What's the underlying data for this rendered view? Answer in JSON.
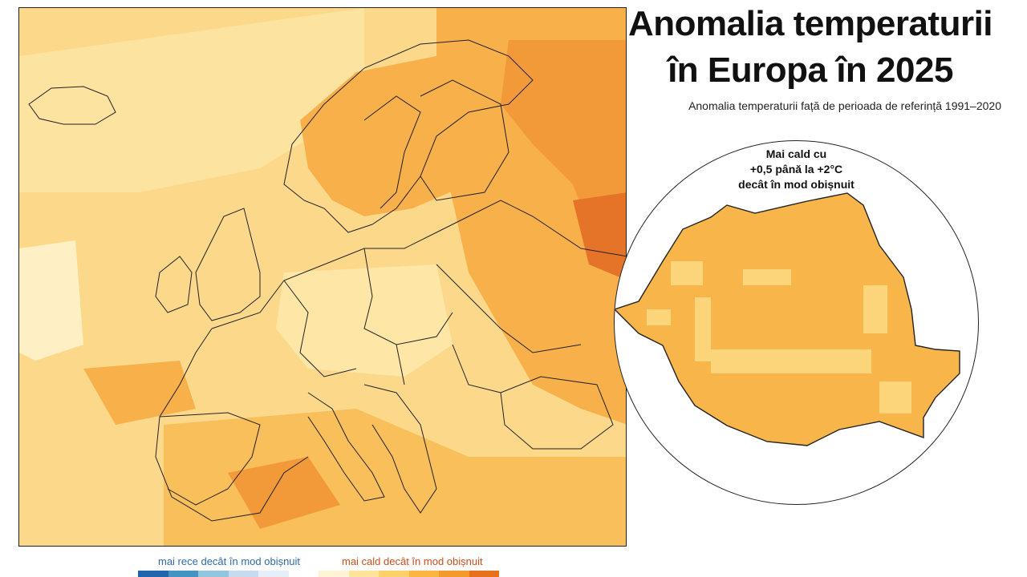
{
  "title": {
    "line1": "Anomalia temperaturii",
    "line2": "în Europa în 2025"
  },
  "subtitle": "Anomalia temperaturii față de perioada de referință 1991–2020",
  "inset": {
    "label_lines": [
      "Mai cald cu",
      "+0,5 până la +2°C",
      "decât în mod obișnuit"
    ]
  },
  "legend": {
    "cold_label": "mai rece decât în mod obișnuit",
    "warm_label": "mai cald decât în mod obișnuit",
    "colors": [
      "#2166ac",
      "#4393c3",
      "#92c5de",
      "#c6dbef",
      "#e6eef8",
      "#ffffff",
      "#fff5d6",
      "#ffe49a",
      "#fdd06a",
      "#fbb642",
      "#f49a2a",
      "#e8711c"
    ]
  },
  "colors": {
    "anomaly_low": "#fde9a6",
    "anomaly_mid": "#fcd57a",
    "anomaly_high": "#f7b54a",
    "anomaly_higher": "#f2993a",
    "anomaly_highest": "#e67428",
    "border": "#222222"
  }
}
